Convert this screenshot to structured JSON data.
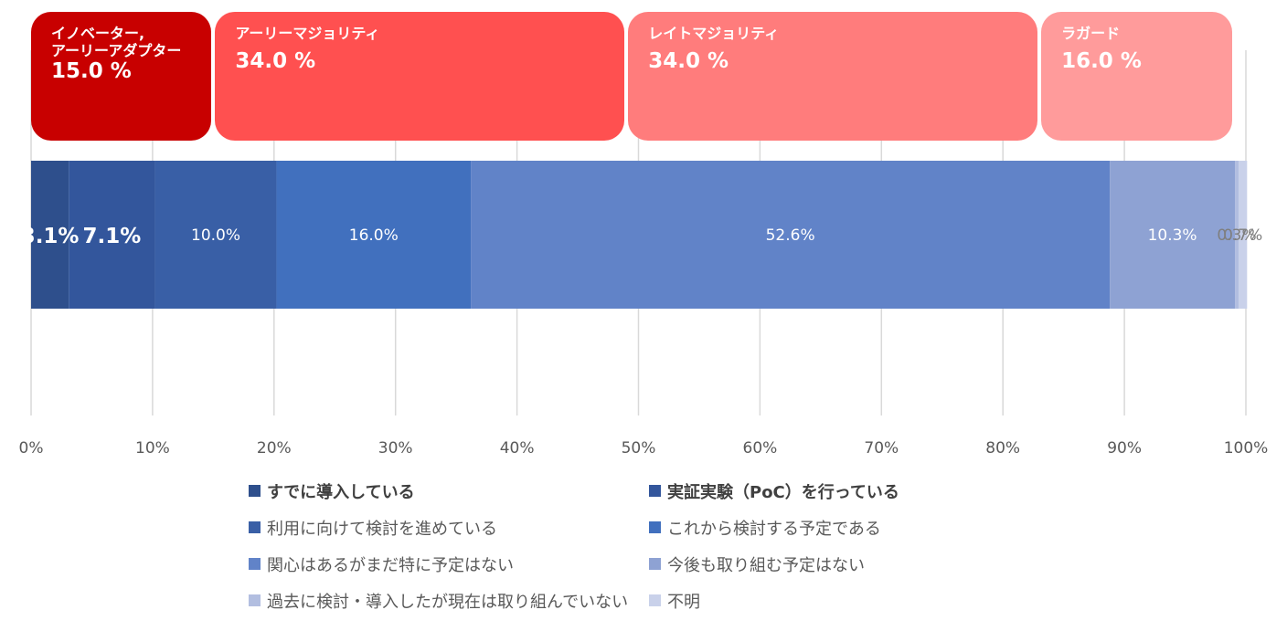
{
  "chart_data": {
    "type": "bar",
    "orientation": "horizontal-stacked",
    "xlim": [
      0,
      100
    ],
    "ticks": [
      "0%",
      "10%",
      "20%",
      "30%",
      "40%",
      "50%",
      "60%",
      "70%",
      "80%",
      "90%",
      "100%"
    ],
    "grid": true,
    "legend_position": "bottom",
    "series": [
      {
        "name": "すでに導入している",
        "value": 3.1,
        "label": "3.1%",
        "color": "#2E4F8C"
      },
      {
        "name": "実証実験（PoC）を行っている",
        "value": 7.1,
        "label": "7.1%",
        "color": "#33569C"
      },
      {
        "name": "利用に向けて検討を進めている",
        "value": 10.0,
        "label": "10.0%",
        "color": "#395FA6"
      },
      {
        "name": "これから検討する予定である",
        "value": 16.0,
        "label": "16.0%",
        "color": "#4170BE"
      },
      {
        "name": "関心はあるがまだ特に予定はない",
        "value": 52.6,
        "label": "52.6%",
        "color": "#6183C8"
      },
      {
        "name": "今後も取り組む予定はない",
        "value": 10.3,
        "label": "10.3%",
        "color": "#8EA2D3"
      },
      {
        "name": "過去に検討・導入したが現在は取り組んでいない",
        "value": 0.3,
        "label": "0.3%",
        "color": "#B2BEE0"
      },
      {
        "name": "不明",
        "value": 0.7,
        "label": "0.7%",
        "color": "#C9D1EA"
      }
    ],
    "adopter_bands": [
      {
        "name": "イノベーター,\nアーリーアダプター",
        "pct": "15.0 %",
        "color": "#C80000"
      },
      {
        "name": "アーリーマジョリティ",
        "pct": "34.0 %",
        "color": "#FF5050"
      },
      {
        "name": "レイトマジョリティ",
        "pct": "34.0 %",
        "color": "#FF7C7C"
      },
      {
        "name": "ラガード",
        "pct": "16.0 %",
        "color": "#FF9B9B"
      }
    ]
  }
}
